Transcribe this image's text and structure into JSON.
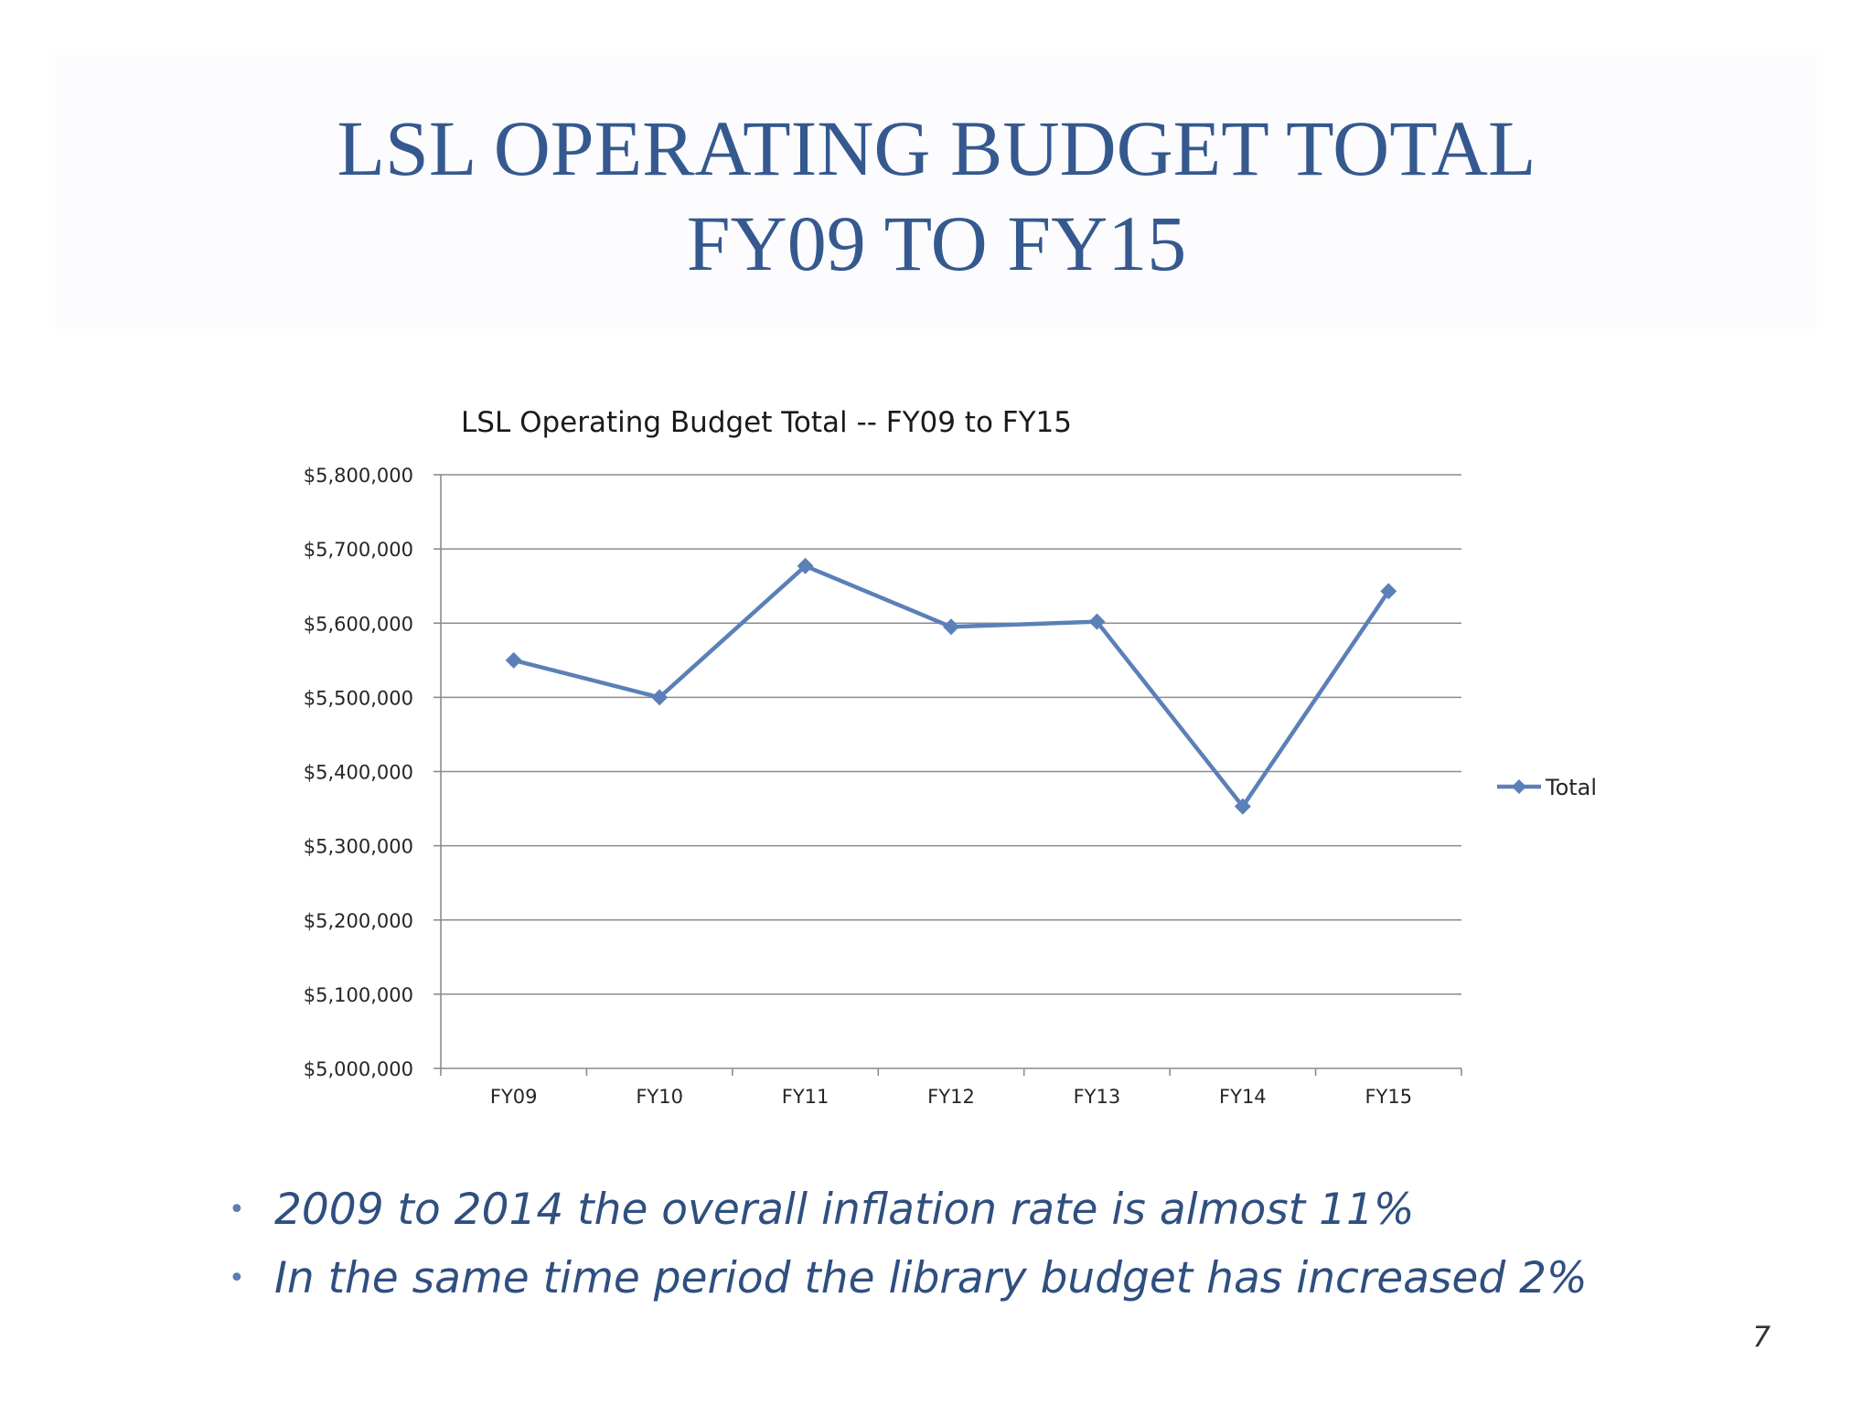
{
  "slide": {
    "title_line_1": "LSL OPERATING BUDGET TOTAL",
    "title_line_2": "FY09 TO FY15",
    "page_number": "7",
    "title_color": "#35598f",
    "bullets": [
      "2009 to 2014 the overall inflation rate is almost 11%",
      "In the same time period the library budget has increased 2%"
    ]
  },
  "chart_data": {
    "type": "line",
    "title": "LSL  Operating Budget Total -- FY09 to FY15",
    "categories": [
      "FY09",
      "FY10",
      "FY11",
      "FY12",
      "FY13",
      "FY14",
      "FY15"
    ],
    "series": [
      {
        "name": "Total",
        "values": [
          5550000,
          5500000,
          5677000,
          5595000,
          5602000,
          5353000,
          5643000
        ],
        "color": "#5b80b8",
        "marker": "diamond"
      }
    ],
    "ylim": [
      5000000,
      5800000
    ],
    "ytick_step": 100000,
    "yticks": [
      "$5,000,000",
      "$5,100,000",
      "$5,200,000",
      "$5,300,000",
      "$5,400,000",
      "$5,500,000",
      "$5,600,000",
      "$5,700,000",
      "$5,800,000"
    ],
    "grid": true,
    "legend": "right"
  }
}
